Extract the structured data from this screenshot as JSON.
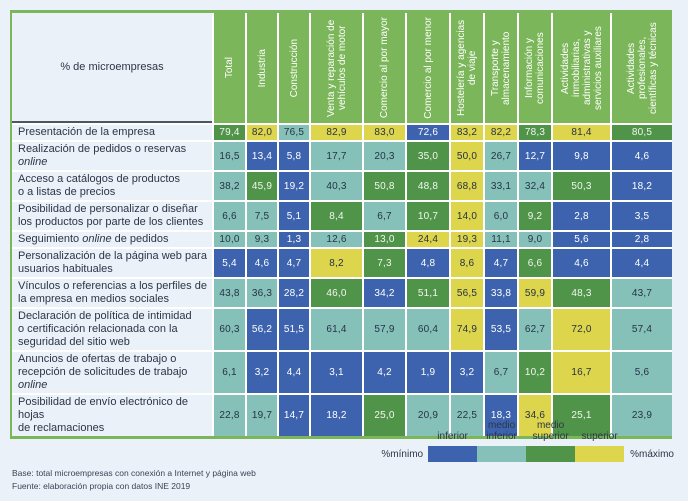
{
  "page": {
    "corner_label": "% de microempresas",
    "footer": [
      "Base: total microempresas con conexión a Internet y página web",
      "Fuente: elaboración propia con datos INE 2019"
    ]
  },
  "colors": {
    "accent_green": "#7cb65a",
    "inferior": "#3e63ae",
    "medio_inferior": "#85c1b9",
    "medio_superior": "#4f9449",
    "superior": "#ddd54b",
    "text_dark": "#2c3547"
  },
  "legend": {
    "labels": [
      "inferior",
      "medio inferior",
      "medio superior",
      "superior"
    ],
    "level_keys": [
      "inferior",
      "medio_inferior",
      "medio_superior",
      "superior"
    ],
    "min_label": "%mínimo",
    "max_label": "%máximo"
  },
  "chart_data": {
    "type": "heatmap",
    "title": "% de microempresas",
    "level_legend": {
      "i": "inferior",
      "mi": "medio inferior",
      "ms": "medio superior",
      "s": "superior"
    },
    "columns": [
      "Total",
      "Industria",
      "Construcción",
      "Venta y reparación de vehículos de motor",
      "Comercio al por mayor",
      "Comercio al por menor",
      "Hostelería y agencias de viaje",
      "Transporte y almacenamiento",
      "Información y comunicaciones",
      "Actividades inmobiliarias, administrativas y servicios auxiliares",
      "Actividades profesionales, científicas y técnicas"
    ],
    "rows": [
      {
        "label_lines": [
          "Presentación de la empresa"
        ],
        "values": [
          "79,4",
          "82,0",
          "76,5",
          "82,9",
          "83,0",
          "72,6",
          "83,2",
          "82,2",
          "78,3",
          "81,4",
          "80,5"
        ],
        "levels": [
          "ms",
          "s",
          "mi",
          "s",
          "s",
          "i",
          "s",
          "s",
          "ms",
          "s",
          "ms"
        ]
      },
      {
        "label_lines": [
          "Realización de pedidos o reservas online"
        ],
        "values": [
          "16,5",
          "13,4",
          "5,8",
          "17,7",
          "20,3",
          "35,0",
          "50,0",
          "26,7",
          "12,7",
          "9,8",
          "4,6"
        ],
        "levels": [
          "mi",
          "i",
          "i",
          "mi",
          "mi",
          "ms",
          "s",
          "mi",
          "i",
          "i",
          "i"
        ]
      },
      {
        "label_lines": [
          "Acceso a catálogos de productos",
          "o a listas de precios"
        ],
        "values": [
          "38,2",
          "45,9",
          "19,2",
          "40,3",
          "50,8",
          "48,8",
          "68,8",
          "33,1",
          "32,4",
          "50,3",
          "18,2"
        ],
        "levels": [
          "mi",
          "ms",
          "i",
          "mi",
          "ms",
          "ms",
          "s",
          "mi",
          "mi",
          "ms",
          "i"
        ]
      },
      {
        "label_lines": [
          "Posibilidad de personalizar o diseñar",
          "los productos por parte de los clientes"
        ],
        "values": [
          "6,6",
          "7,5",
          "5,1",
          "8,4",
          "6,7",
          "10,7",
          "14,0",
          "6,0",
          "9,2",
          "2,8",
          "3,5"
        ],
        "levels": [
          "mi",
          "mi",
          "i",
          "ms",
          "mi",
          "ms",
          "s",
          "mi",
          "ms",
          "i",
          "i"
        ]
      },
      {
        "label_lines": [
          "Seguimiento online de pedidos"
        ],
        "values": [
          "10,0",
          "9,3",
          "1,3",
          "12,6",
          "13,0",
          "24,4",
          "19,3",
          "11,1",
          "9,0",
          "5,6",
          "2,8"
        ],
        "levels": [
          "mi",
          "mi",
          "i",
          "mi",
          "ms",
          "s",
          "s",
          "mi",
          "mi",
          "i",
          "i"
        ]
      },
      {
        "label_lines": [
          "Personalización de la página web para",
          "usuarios habituales"
        ],
        "values": [
          "5,4",
          "4,6",
          "4,7",
          "8,2",
          "7,3",
          "4,8",
          "8,6",
          "4,7",
          "6,6",
          "4,6",
          "4,4"
        ],
        "levels": [
          "i",
          "i",
          "i",
          "s",
          "ms",
          "i",
          "s",
          "i",
          "ms",
          "i",
          "i"
        ]
      },
      {
        "label_lines": [
          "Vínculos o referencias a los perfiles de",
          "la empresa en medios sociales"
        ],
        "values": [
          "43,8",
          "36,3",
          "28,2",
          "46,0",
          "34,2",
          "51,1",
          "56,5",
          "33,8",
          "59,9",
          "48,3",
          "43,7"
        ],
        "levels": [
          "mi",
          "mi",
          "i",
          "ms",
          "i",
          "ms",
          "s",
          "i",
          "s",
          "ms",
          "mi"
        ]
      },
      {
        "label_lines": [
          "Declaración de política de intimidad",
          "o certificación relacionada con la",
          "seguridad del sitio web"
        ],
        "values": [
          "60,3",
          "56,2",
          "51,5",
          "61,4",
          "57,9",
          "60,4",
          "74,9",
          "53,5",
          "62,7",
          "72,0",
          "57,4"
        ],
        "levels": [
          "mi",
          "i",
          "i",
          "mi",
          "mi",
          "mi",
          "s",
          "i",
          "mi",
          "s",
          "mi"
        ]
      },
      {
        "label_lines": [
          "Anuncios de ofertas de trabajo o",
          "recepción de solicitudes de trabajo online"
        ],
        "values": [
          "6,1",
          "3,2",
          "4,4",
          "3,1",
          "4,2",
          "1,9",
          "3,2",
          "6,7",
          "10,2",
          "16,7",
          "5,6"
        ],
        "levels": [
          "mi",
          "i",
          "i",
          "i",
          "i",
          "i",
          "i",
          "mi",
          "ms",
          "s",
          "mi"
        ]
      },
      {
        "label_lines": [
          "Posibilidad de envío electrónico de hojas",
          "de reclamaciones"
        ],
        "values": [
          "22,8",
          "19,7",
          "14,7",
          "18,2",
          "25,0",
          "20,9",
          "22,5",
          "18,3",
          "34,6",
          "25,1",
          "23,9"
        ],
        "levels": [
          "mi",
          "mi",
          "i",
          "i",
          "ms",
          "mi",
          "mi",
          "i",
          "s",
          "ms",
          "mi"
        ]
      }
    ]
  }
}
